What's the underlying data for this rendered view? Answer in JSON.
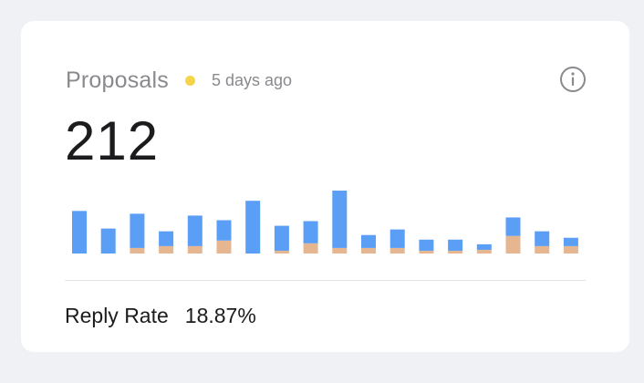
{
  "card": {
    "title": "Proposals",
    "age": "5 days ago",
    "status_color": "#f5d547",
    "value": "212",
    "info_icon": "info-icon",
    "footer_label": "Reply Rate",
    "footer_value": "18.87%"
  },
  "chart_data": {
    "type": "bar",
    "stacked": true,
    "colors": {
      "primary": "#5b9ef5",
      "secondary": "#e6b690"
    },
    "series": [
      {
        "values": [
          46,
          27,
          37,
          16,
          33,
          22,
          57,
          27,
          24,
          62,
          14,
          20,
          12,
          12,
          6,
          20,
          16,
          9
        ]
      },
      {
        "values": [
          0,
          0,
          6,
          8,
          8,
          14,
          0,
          3,
          11,
          6,
          6,
          6,
          3,
          3,
          4,
          19,
          8,
          8
        ]
      }
    ],
    "ylim": [
      0,
      70
    ]
  }
}
